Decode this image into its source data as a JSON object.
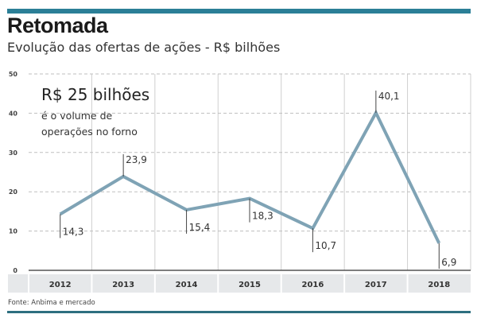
{
  "header": {
    "title": "Retomada",
    "subtitle": "Evolução das ofertas de ações - R$ bilhões"
  },
  "callout": {
    "headline": "R$ 25 bilhões",
    "line1": "é o volume de",
    "line2": "operações no forno"
  },
  "footer": {
    "source": "Fonte: Anbima e mercado"
  },
  "colors": {
    "accent_bar": "#2b7f97",
    "line": "#7fa3b5",
    "axis_band": "#e6e8ea"
  },
  "chart_data": {
    "type": "line",
    "title": "Retomada",
    "subtitle": "Evolução das ofertas de ações - R$ bilhões",
    "xlabel": "",
    "ylabel": "",
    "categories": [
      "2012",
      "2013",
      "2014",
      "2015",
      "2016",
      "2017",
      "2018"
    ],
    "series": [
      {
        "name": "Ofertas de ações (R$ bilhões)",
        "values": [
          14.3,
          23.9,
          15.4,
          18.3,
          10.7,
          40.1,
          6.9
        ]
      }
    ],
    "data_labels": [
      "14,3",
      "23,9",
      "15,4",
      "18,3",
      "10,7",
      "40,1",
      "6,9"
    ],
    "label_position": [
      "below",
      "above",
      "below",
      "below",
      "below",
      "above",
      "below"
    ],
    "ylim": [
      0,
      50
    ],
    "yticks": [
      0,
      10,
      20,
      30,
      40,
      50
    ],
    "ytick_labels": [
      "0",
      "10",
      "20",
      "30",
      "40",
      "50"
    ],
    "grid": true,
    "legend": "none",
    "annotation": "R$ 25 bilhões é o volume de operações no forno",
    "source": "Fonte: Anbima e mercado"
  }
}
